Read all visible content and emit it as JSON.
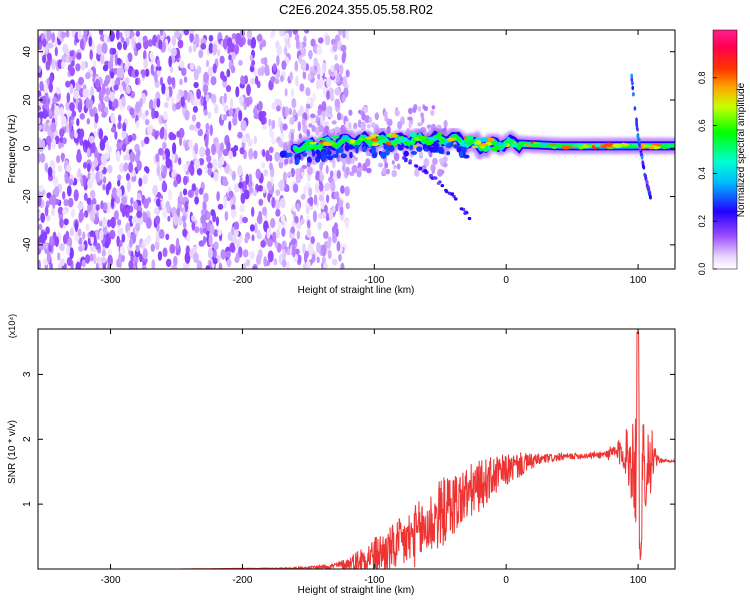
{
  "title": "C2E6.2024.355.05.58.R02",
  "chart_data": [
    {
      "type": "heatmap",
      "xlabel": "Height of straight line (km)",
      "ylabel": "Frequency (Hz)",
      "xlim": [
        -355,
        128
      ],
      "ylim": [
        -50,
        49
      ],
      "x_ticks": [
        -300,
        -200,
        -100,
        0,
        100
      ],
      "y_ticks": [
        -40,
        -20,
        0,
        20,
        40
      ],
      "colorbar": {
        "label": "Normalized spectral amplitude",
        "range": [
          0,
          1
        ],
        "ticks": [
          0.0,
          0.2,
          0.4,
          0.6,
          0.8
        ]
      },
      "features": [
        {
          "kind": "scattered weak noise",
          "x_range": [
            -355,
            -130
          ],
          "amplitude": 0.15
        },
        {
          "kind": "main frequency band",
          "x": [
            -160,
            -120,
            -80,
            -40,
            -20,
            0,
            40,
            90,
            128
          ],
          "y": [
            0,
            3,
            3,
            4,
            1,
            2,
            1,
            1,
            1
          ],
          "amplitude": 0.7
        },
        {
          "kind": "descending tail",
          "x": [
            -80,
            -55,
            -40,
            -25
          ],
          "y": [
            -3,
            -12,
            -20,
            -31
          ],
          "amplitude": 0.25
        },
        {
          "kind": "sloped streak",
          "x": [
            95,
            100,
            105,
            110
          ],
          "y": [
            30,
            5,
            -10,
            -22
          ],
          "amplitude": 0.3
        }
      ]
    },
    {
      "type": "line",
      "xlabel": "Height of straight line (km)",
      "ylabel": "SNR (10 * v/v)",
      "y_multiplier": "(x10⁴)",
      "xlim": [
        -355,
        128
      ],
      "ylim": [
        0,
        3.7
      ],
      "x_ticks": [
        -300,
        -200,
        -100,
        0,
        100
      ],
      "y_ticks": [
        1,
        2,
        3
      ],
      "color": "#ee3333",
      "series": [
        {
          "x": [
            -355,
            -300,
            -250,
            -200,
            -170,
            -150,
            -130,
            -120,
            -110,
            -100,
            -90,
            -80,
            -70,
            -60,
            -50,
            -40,
            -30,
            -20,
            -10,
            0,
            10,
            20,
            30,
            40,
            50,
            60,
            70,
            80,
            90,
            95,
            100,
            105,
            110,
            115,
            120,
            128
          ],
          "y": [
            0.0,
            0.0,
            0.0,
            0.01,
            0.01,
            0.02,
            0.05,
            0.08,
            0.15,
            0.22,
            0.28,
            0.38,
            0.5,
            0.65,
            0.85,
            1.0,
            1.15,
            1.28,
            1.42,
            1.52,
            1.6,
            1.66,
            1.7,
            1.72,
            1.74,
            1.75,
            1.76,
            1.78,
            1.8,
            1.7,
            1.6,
            1.65,
            1.7,
            1.68,
            1.67,
            1.66
          ],
          "noise": [
            0,
            0,
            0,
            0,
            0.01,
            0.02,
            0.05,
            0.1,
            0.2,
            0.28,
            0.35,
            0.42,
            0.48,
            0.52,
            0.55,
            0.5,
            0.45,
            0.4,
            0.32,
            0.25,
            0.2,
            0.12,
            0.08,
            0.06,
            0.05,
            0.05,
            0.05,
            0.12,
            0.3,
            0.7,
            1.3,
            0.8,
            0.5,
            0.05,
            0.02,
            0.02
          ]
        }
      ]
    }
  ]
}
